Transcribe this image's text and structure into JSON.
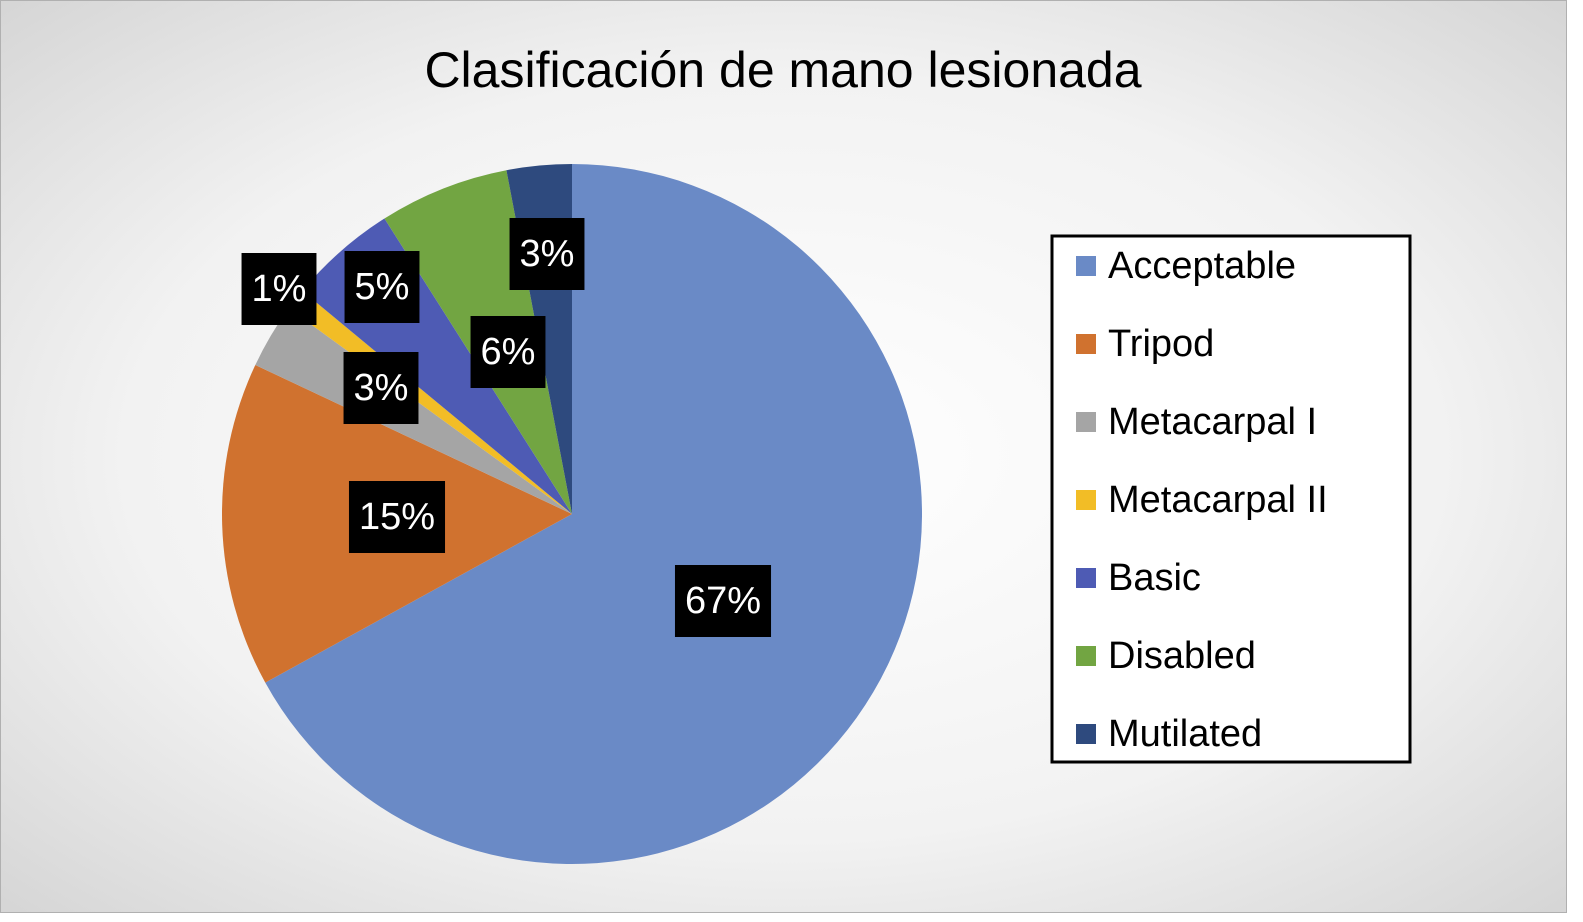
{
  "chart_data": {
    "type": "pie",
    "title": "Clasificación de mano lesionada",
    "categories": [
      "Acceptable",
      "Tripod",
      "Metacarpal I",
      "Metacarpal II",
      "Basic",
      "Disabled",
      "Mutilated"
    ],
    "values": [
      67,
      15,
      3,
      1,
      5,
      6,
      3
    ],
    "value_labels": [
      "67%",
      "15%",
      "3%",
      "1%",
      "5%",
      "6%",
      "3%"
    ],
    "colors": [
      "#6a8ac6",
      "#d0722f",
      "#a5a5a5",
      "#f2bd26",
      "#4e5bb4",
      "#72a542",
      "#2e4a7e"
    ],
    "legend": "right"
  }
}
